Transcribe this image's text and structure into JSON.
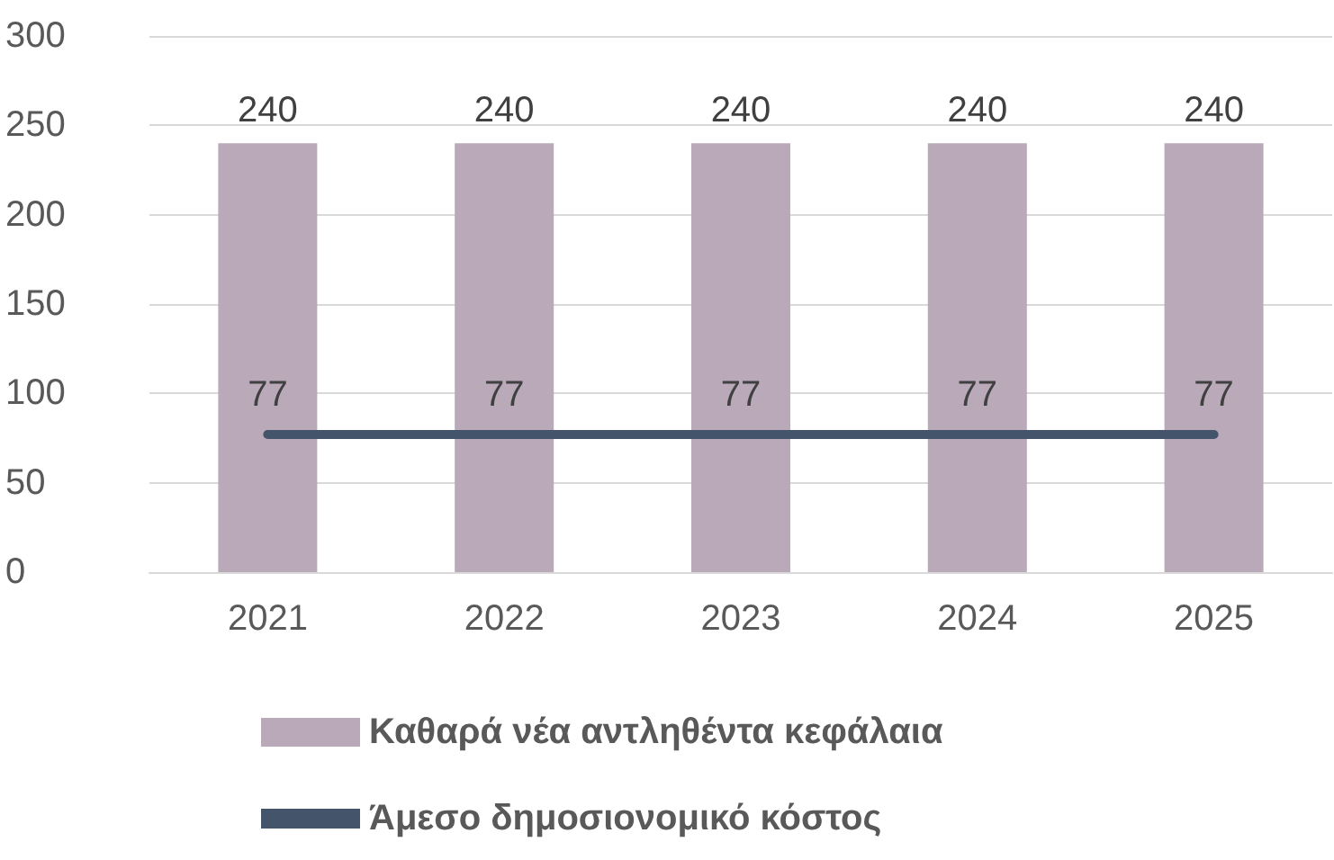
{
  "chart_data": {
    "type": "bar",
    "categories": [
      "2021",
      "2022",
      "2023",
      "2024",
      "2025"
    ],
    "series": [
      {
        "name": "Καθαρά νέα αντληθέντα κεφάλαια",
        "color": "#b9a9b9",
        "values": [
          240,
          240,
          240,
          240,
          240
        ]
      },
      {
        "name": "Άμεσο δημοσιονομικό κόστος",
        "type": "line",
        "color": "#44546a",
        "values": [
          77,
          77,
          77,
          77,
          77
        ]
      }
    ],
    "ylim": [
      0,
      300
    ],
    "yticks": [
      0,
      50,
      100,
      150,
      200,
      250,
      300
    ],
    "grid": "y",
    "legend": "bottom",
    "data_labels": true,
    "marker": "none",
    "line_style": "solid"
  }
}
